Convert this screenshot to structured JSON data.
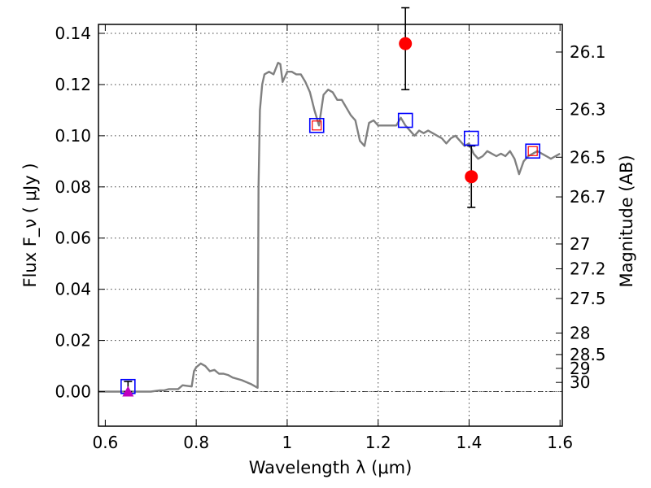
{
  "chart_data": {
    "type": "line",
    "xlabel": "Wavelength  λ (μm)",
    "ylabel": "Flux  F_ν  ( μJy )",
    "y2label": "Magnitude (AB)",
    "xlim": [
      0.585,
      1.605
    ],
    "ylim": [
      -0.0135,
      0.1435
    ],
    "grid": true,
    "x_ticks": [
      0.6,
      0.8,
      1.0,
      1.2,
      1.4,
      1.6
    ],
    "x_tick_labels": [
      "0.6",
      "0.8",
      "1",
      "1.2",
      "1.4",
      "1.6"
    ],
    "y_ticks": [
      0.0,
      0.02,
      0.04,
      0.06,
      0.08,
      0.1,
      0.12,
      0.14
    ],
    "y_tick_labels": [
      "0.00",
      "0.02",
      "0.04",
      "0.06",
      "0.08",
      "0.10",
      "0.12",
      "0.14"
    ],
    "mag_ticks": [
      {
        "label": "26.1",
        "flux": 0.1327
      },
      {
        "label": "26.3",
        "flux": 0.1103
      },
      {
        "label": "26.5",
        "flux": 0.0916
      },
      {
        "label": "26.7",
        "flux": 0.0761
      },
      {
        "label": "27",
        "flux": 0.0577
      },
      {
        "label": "27.2",
        "flux": 0.048
      },
      {
        "label": "27.5",
        "flux": 0.0364
      },
      {
        "label": "28",
        "flux": 0.0229
      },
      {
        "label": "28.5",
        "flux": 0.0145
      },
      {
        "label": "29",
        "flux": 0.0091
      },
      {
        "label": "30",
        "flux": 0.0036
      }
    ],
    "zero_line": 0.0,
    "series": [
      {
        "name": "model-sed",
        "kind": "line",
        "color": "#808080",
        "x": [
          0.585,
          0.7,
          0.72,
          0.73,
          0.74,
          0.75,
          0.76,
          0.77,
          0.79,
          0.795,
          0.8,
          0.81,
          0.82,
          0.83,
          0.84,
          0.85,
          0.86,
          0.87,
          0.88,
          0.9,
          0.92,
          0.935,
          0.937,
          0.94,
          0.945,
          0.95,
          0.96,
          0.97,
          0.98,
          0.985,
          0.99,
          1.0,
          1.01,
          1.02,
          1.03,
          1.04,
          1.05,
          1.06,
          1.07,
          1.08,
          1.09,
          1.1,
          1.11,
          1.12,
          1.13,
          1.14,
          1.15,
          1.16,
          1.17,
          1.18,
          1.19,
          1.2,
          1.21,
          1.22,
          1.23,
          1.24,
          1.25,
          1.26,
          1.27,
          1.28,
          1.29,
          1.3,
          1.31,
          1.32,
          1.33,
          1.34,
          1.35,
          1.36,
          1.37,
          1.38,
          1.39,
          1.4,
          1.41,
          1.42,
          1.43,
          1.44,
          1.45,
          1.46,
          1.47,
          1.48,
          1.49,
          1.5,
          1.51,
          1.52,
          1.53,
          1.54,
          1.55,
          1.56,
          1.57,
          1.58,
          1.59,
          1.6
        ],
        "values": [
          0.0,
          0.0,
          0.0005,
          0.0005,
          0.001,
          0.001,
          0.001,
          0.0025,
          0.002,
          0.008,
          0.0095,
          0.011,
          0.01,
          0.008,
          0.0085,
          0.007,
          0.007,
          0.0065,
          0.0055,
          0.0045,
          0.003,
          0.0015,
          0.08,
          0.11,
          0.12,
          0.124,
          0.125,
          0.124,
          0.1285,
          0.128,
          0.121,
          0.125,
          0.125,
          0.124,
          0.124,
          0.121,
          0.117,
          0.11,
          0.104,
          0.116,
          0.118,
          0.117,
          0.114,
          0.114,
          0.111,
          0.108,
          0.106,
          0.098,
          0.096,
          0.105,
          0.106,
          0.104,
          0.104,
          0.104,
          0.104,
          0.104,
          0.107,
          0.104,
          0.102,
          0.1,
          0.102,
          0.101,
          0.102,
          0.101,
          0.1,
          0.099,
          0.097,
          0.099,
          0.1,
          0.098,
          0.096,
          0.097,
          0.093,
          0.091,
          0.092,
          0.094,
          0.093,
          0.092,
          0.093,
          0.092,
          0.094,
          0.091,
          0.085,
          0.09,
          0.092,
          0.093,
          0.094,
          0.093,
          0.092,
          0.091,
          0.092,
          0.093
        ]
      },
      {
        "name": "model-band-fluxes",
        "kind": "open-square",
        "color": "#0000ff",
        "x": [
          0.65,
          1.065,
          1.26,
          1.405,
          1.54
        ],
        "values": [
          0.002,
          0.104,
          0.106,
          0.099,
          0.094
        ]
      },
      {
        "name": "observed-inner-squares",
        "kind": "small-open-square",
        "color": "#ff0000",
        "x": [
          1.065,
          1.54
        ],
        "values": [
          0.104,
          0.094
        ]
      },
      {
        "name": "observed-detections",
        "kind": "filled-circle",
        "color": "#ff0000",
        "x": [
          1.26,
          1.405
        ],
        "values": [
          0.136,
          0.084
        ],
        "err_low": [
          0.118,
          0.072
        ],
        "err_high": [
          0.15,
          0.096
        ]
      },
      {
        "name": "upper-limit",
        "kind": "triangle",
        "color": "#bf00bf",
        "x": [
          0.65
        ],
        "values": [
          0.0
        ],
        "err_low": [
          0.0
        ],
        "err_high": [
          0.004
        ]
      }
    ]
  }
}
